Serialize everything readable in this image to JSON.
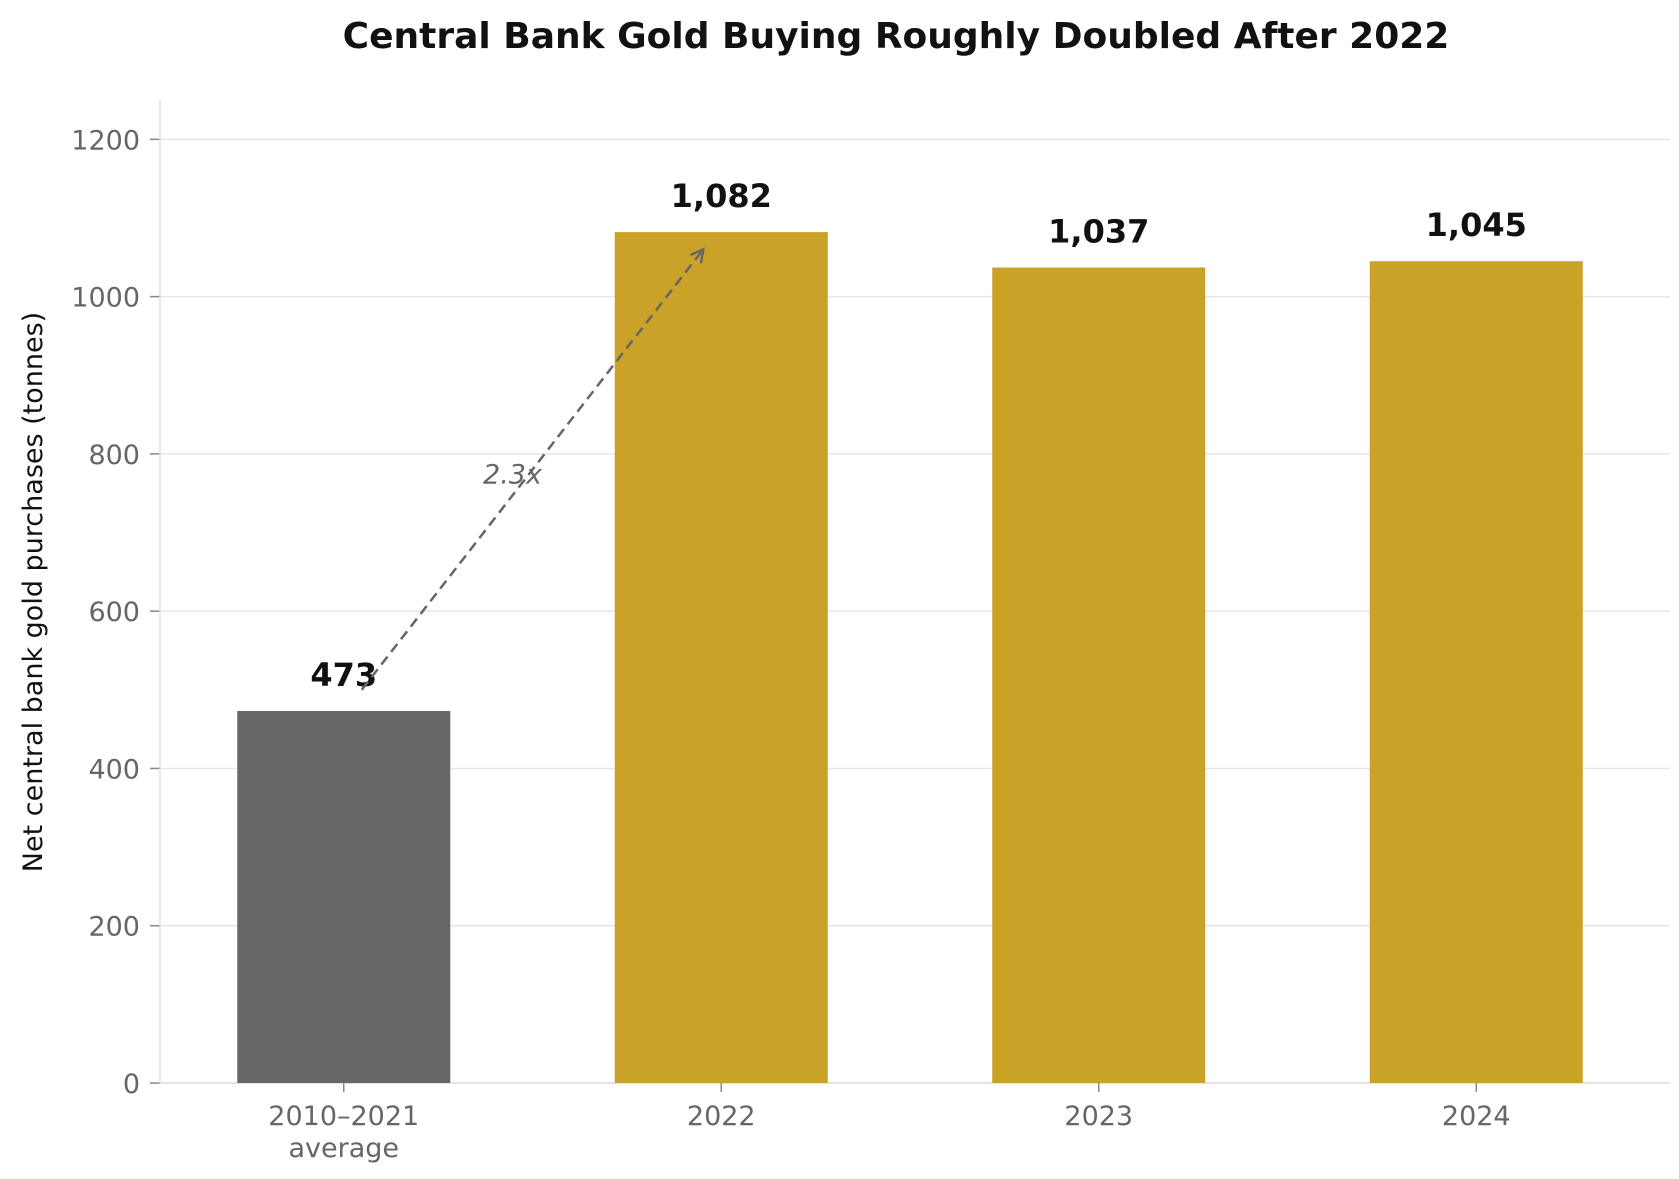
{
  "chart_data": {
    "type": "bar",
    "title": "Central Bank Gold Buying Roughly Doubled After 2022",
    "xlabel": "",
    "ylabel": "Net central bank gold purchases (tonnes)",
    "categories": [
      [
        "2010–2021",
        "average"
      ],
      [
        "2022"
      ],
      [
        "2023"
      ],
      [
        "2024"
      ]
    ],
    "values": [
      473,
      1082,
      1037,
      1045
    ],
    "data_labels": [
      "473",
      "1,082",
      "1,037",
      "1,045"
    ],
    "bar_colors": [
      "#666666",
      "#C9A227",
      "#C9A227",
      "#C9A227"
    ],
    "ylim": [
      0,
      1250
    ],
    "yticks": [
      0,
      200,
      400,
      600,
      800,
      1000,
      1200
    ],
    "grid": "horizontal",
    "legend": "none",
    "annotation": {
      "text": "2.3x",
      "from": {
        "category_index": 0,
        "value": 500
      },
      "to": {
        "category_index": 1,
        "value": 1060
      },
      "style": "dashed-arrow",
      "color": "#666666"
    }
  }
}
